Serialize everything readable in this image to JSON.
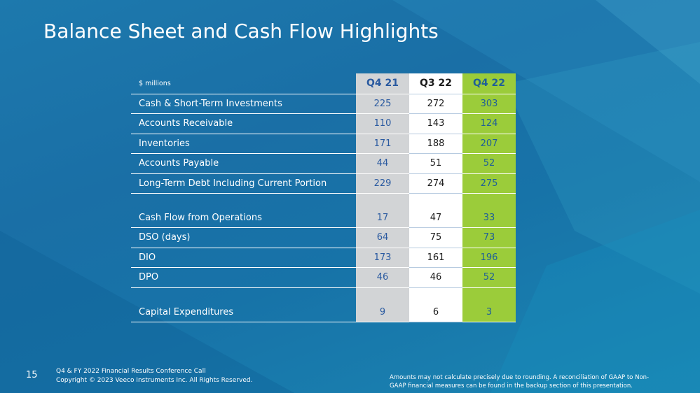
{
  "slide": {
    "title": "Balance Sheet and Cash Flow Highlights",
    "page_number": "15",
    "footer_line1": "Q4 & FY 2022 Financial Results Conference Call",
    "footer_line2": "Copyright © 2023 Veeco Instruments Inc. All Rights Reserved.",
    "footnote_line1": "Amounts may not calculate precisely due to rounding.  A reconciliation of GAAP to Non-",
    "footnote_line2": "GAAP financial measures can be found in the backup section of this presentation."
  },
  "colors": {
    "q421_column": "#d2d4d6",
    "q322_column": "#ffffff",
    "q422_column": "#9bcc3a",
    "background": "#1b74aa"
  },
  "table": {
    "unit_label": "$ millions",
    "columns": [
      "Q4 21",
      "Q3 22",
      "Q4 22"
    ],
    "rows": [
      {
        "label": "Cash & Short-Term Investments",
        "values": [
          "225",
          "272",
          "303"
        ]
      },
      {
        "label": "Accounts Receivable",
        "values": [
          "110",
          "143",
          "124"
        ]
      },
      {
        "label": "Inventories",
        "values": [
          "171",
          "188",
          "207"
        ]
      },
      {
        "label": "Accounts Payable",
        "values": [
          "44",
          "51",
          "52"
        ]
      },
      {
        "label": "Long-Term Debt Including Current Portion",
        "values": [
          "229",
          "274",
          "275"
        ]
      },
      {
        "label": "Cash Flow from Operations",
        "values": [
          "17",
          "47",
          "33"
        ]
      },
      {
        "label": "DSO (days)",
        "values": [
          "64",
          "75",
          "73"
        ]
      },
      {
        "label": "DIO",
        "values": [
          "173",
          "161",
          "196"
        ]
      },
      {
        "label": "DPO",
        "values": [
          "46",
          "46",
          "52"
        ]
      },
      {
        "label": "Capital Expenditures",
        "values": [
          "9",
          "6",
          "3"
        ]
      }
    ]
  }
}
